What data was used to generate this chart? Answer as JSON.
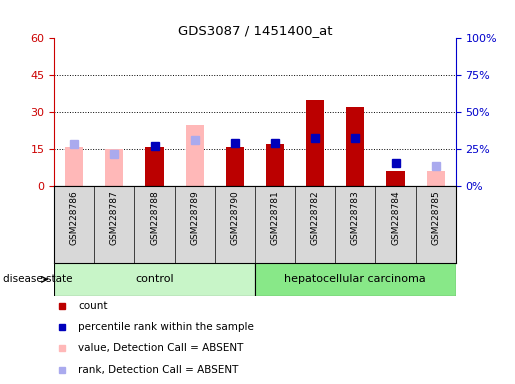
{
  "title": "GDS3087 / 1451400_at",
  "samples": [
    "GSM228786",
    "GSM228787",
    "GSM228788",
    "GSM228789",
    "GSM228790",
    "GSM228781",
    "GSM228782",
    "GSM228783",
    "GSM228784",
    "GSM228785"
  ],
  "groups": [
    "control",
    "control",
    "control",
    "control",
    "control",
    "hepatocellular carcinoma",
    "hepatocellular carcinoma",
    "hepatocellular carcinoma",
    "hepatocellular carcinoma",
    "hepatocellular carcinoma"
  ],
  "count_values": [
    null,
    null,
    16.0,
    null,
    16.0,
    17.0,
    35.0,
    32.0,
    6.0,
    null
  ],
  "percentile_values": [
    null,
    null,
    27.5,
    null,
    29.0,
    29.0,
    32.5,
    32.5,
    16.0,
    null
  ],
  "value_absent": [
    16.0,
    15.0,
    null,
    25.0,
    null,
    null,
    null,
    null,
    null,
    6.0
  ],
  "rank_absent": [
    28.5,
    22.0,
    null,
    31.0,
    null,
    null,
    null,
    null,
    null,
    14.0
  ],
  "ylim": [
    0,
    60
  ],
  "yticks_left": [
    0,
    15,
    30,
    45,
    60
  ],
  "yticks_right": [
    0,
    25,
    50,
    75,
    100
  ],
  "ylabel_left_color": "#cc0000",
  "ylabel_right_color": "#0000cc",
  "control_color": "#c8f5c8",
  "cancer_color": "#88e888",
  "absent_bar_color": "#ffb8b8",
  "present_bar_color": "#bb0000",
  "absent_dot_color": "#aaaaee",
  "present_dot_color": "#0000bb",
  "background_color": "#ffffff",
  "label_area_color": "#d8d8d8",
  "legend_items": [
    {
      "color": "#bb0000",
      "label": "count"
    },
    {
      "color": "#0000bb",
      "label": "percentile rank within the sample"
    },
    {
      "color": "#ffb8b8",
      "label": "value, Detection Call = ABSENT"
    },
    {
      "color": "#aaaaee",
      "label": "rank, Detection Call = ABSENT"
    }
  ]
}
